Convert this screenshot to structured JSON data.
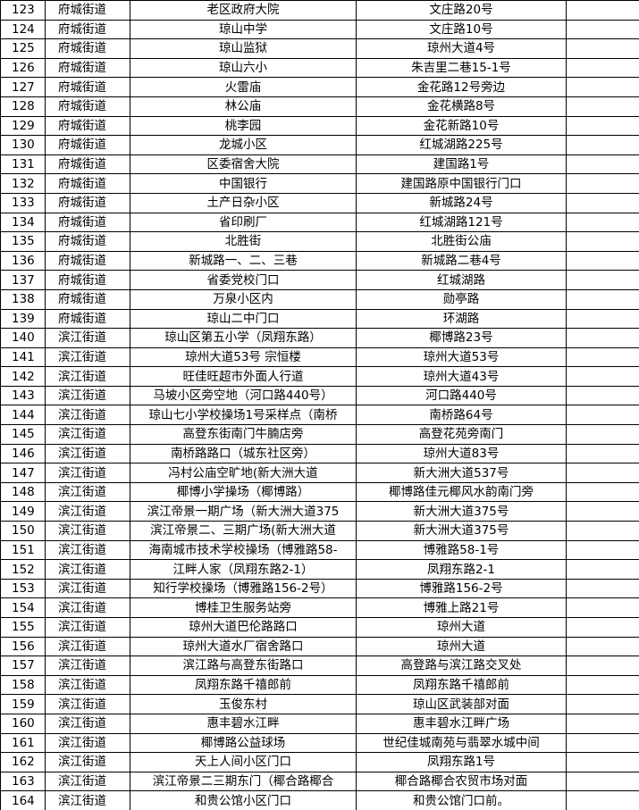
{
  "table": {
    "rows": [
      [
        "123",
        "府城街道",
        "老区政府大院",
        "文庄路20号"
      ],
      [
        "124",
        "府城街道",
        "琼山中学",
        "文庄路10号"
      ],
      [
        "125",
        "府城街道",
        "琼山监狱",
        "琼州大道4号"
      ],
      [
        "126",
        "府城街道",
        "琼山六小",
        "朱吉里二巷15-1号"
      ],
      [
        "127",
        "府城街道",
        "火雷庙",
        "金花路12号旁边"
      ],
      [
        "128",
        "府城街道",
        "林公庙",
        "金花横路8号"
      ],
      [
        "129",
        "府城街道",
        "桃李园",
        "金花新路10号"
      ],
      [
        "130",
        "府城街道",
        "龙城小区",
        "红城湖路225号"
      ],
      [
        "131",
        "府城街道",
        "区委宿舍大院",
        "建国路1号"
      ],
      [
        "132",
        "府城街道",
        "中国银行",
        "建国路原中国银行门口"
      ],
      [
        "133",
        "府城街道",
        "土产日杂小区",
        "新城路24号"
      ],
      [
        "134",
        "府城街道",
        "省印刷厂",
        "红城湖路121号"
      ],
      [
        "135",
        "府城街道",
        "北胜街",
        "北胜街公庙"
      ],
      [
        "136",
        "府城街道",
        "新城路一、二、三巷",
        "新城路二巷4号"
      ],
      [
        "137",
        "府城街道",
        "省委党校门口",
        "红城湖路"
      ],
      [
        "138",
        "府城街道",
        "万泉小区内",
        "勋亭路"
      ],
      [
        "139",
        "府城街道",
        "琼山二中门口",
        "环湖路"
      ],
      [
        "140",
        "滨江街道",
        "琼山区第五小学（凤翔东路）",
        "椰博路23号"
      ],
      [
        "141",
        "滨江街道",
        "琼州大道53号 宗恒楼",
        "琼州大道53号"
      ],
      [
        "142",
        "滨江街道",
        "旺佳旺超市外面人行道",
        "琼州大道43号"
      ],
      [
        "143",
        "滨江街道",
        "马坡小区旁空地（河口路440号）",
        "河口路440号"
      ],
      [
        "144",
        "滨江街道",
        "琼山七小学校操场1号采样点（南桥",
        "南桥路64号"
      ],
      [
        "145",
        "滨江街道",
        "高登东街南门牛腩店旁",
        "高登花苑旁南门"
      ],
      [
        "146",
        "滨江街道",
        "南桥路路口（城东社区旁）",
        "琼州大道83号"
      ],
      [
        "147",
        "滨江街道",
        "冯村公庙空旷地(新大洲大道",
        "新大洲大道537号"
      ],
      [
        "148",
        "滨江街道",
        "椰博小学操场（椰博路）",
        "椰博路佳元椰风水韵南门旁"
      ],
      [
        "149",
        "滨江街道",
        "滨江帝景一期广场（新大洲大道375",
        "新大洲大道375号"
      ],
      [
        "150",
        "滨江街道",
        "滨江帝景二、三期广场(新大洲大道",
        "新大洲大道375号"
      ],
      [
        "151",
        "滨江街道",
        "海南城市技术学校操场（博雅路58-",
        "博雅路58-1号"
      ],
      [
        "152",
        "滨江街道",
        "江畔人家（凤翔东路2-1）",
        "凤翔东路2-1"
      ],
      [
        "153",
        "滨江街道",
        "知行学校操场（博雅路156-2号）",
        "博雅路156-2号"
      ],
      [
        "154",
        "滨江街道",
        "博桂卫生服务站旁",
        "博雅上路21号"
      ],
      [
        "155",
        "滨江街道",
        "琼州大道巴伦路路口",
        "琼州大道"
      ],
      [
        "156",
        "滨江街道",
        "琼州大道水厂宿舍路口",
        "琼州大道"
      ],
      [
        "157",
        "滨江街道",
        "滨江路与高登东街路口",
        "高登路与滨江路交叉处"
      ],
      [
        "158",
        "滨江街道",
        "凤翔东路千禧郎前",
        "凤翔东路千禧郎前"
      ],
      [
        "159",
        "滨江街道",
        "玉俊东村",
        "琼山区武装部对面"
      ],
      [
        "160",
        "滨江街道",
        "惠丰碧水江畔",
        "惠丰碧水江畔广场"
      ],
      [
        "161",
        "滨江街道",
        "椰博路公益球场",
        "世纪佳城南苑与翡翠水城中间"
      ],
      [
        "162",
        "滨江街道",
        "天上人间小区门口",
        "凤翔东路1号"
      ],
      [
        "163",
        "滨江街道",
        "滨江帝景二三期东门（椰合路椰合",
        "椰合路椰合农贸市场对面"
      ],
      [
        "164",
        "滨江街道",
        "和贵公馆小区门口",
        "和贵公馆门口前。"
      ]
    ]
  }
}
